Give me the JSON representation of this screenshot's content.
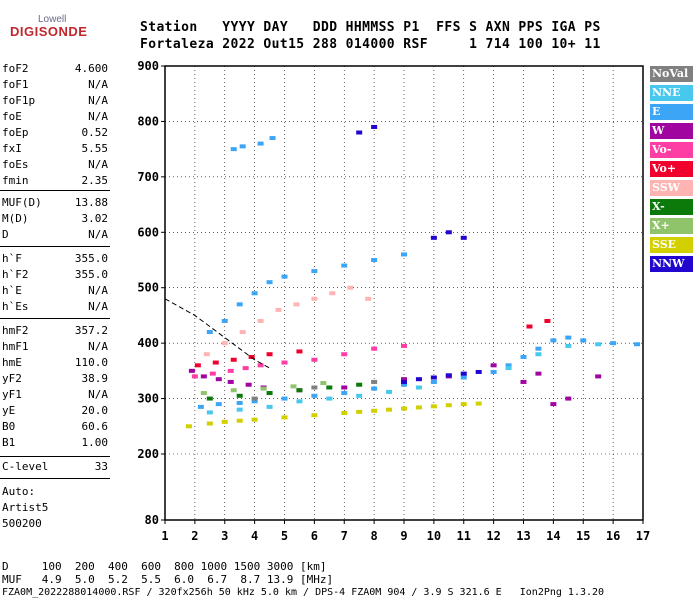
{
  "logo": {
    "top": "Lowell",
    "main": "DIGISONDE"
  },
  "header": {
    "row1": "Station   YYYY DAY   DDD HHMMSS P1  FFS S AXN PPS IGA PS",
    "row2": "Fortaleza 2022 Out15 288 014000 RSF     1 714 100 10+ 11"
  },
  "params": [
    {
      "name": "foF2",
      "value": "4.600"
    },
    {
      "name": "foF1",
      "value": "N/A"
    },
    {
      "name": "foF1p",
      "value": "N/A"
    },
    {
      "name": "foE",
      "value": "N/A"
    },
    {
      "name": "foEp",
      "value": "0.52"
    },
    {
      "name": "fxI",
      "value": "5.55"
    },
    {
      "name": "foEs",
      "value": "N/A"
    },
    {
      "name": "fmin",
      "value": "2.35"
    },
    {
      "name": "MUF(D)",
      "value": "13.88"
    },
    {
      "name": "M(D)",
      "value": "3.02"
    },
    {
      "name": "D",
      "value": "N/A"
    },
    {
      "name": "h`F",
      "value": "355.0"
    },
    {
      "name": "h`F2",
      "value": "355.0"
    },
    {
      "name": "h`E",
      "value": "N/A"
    },
    {
      "name": "h`Es",
      "value": "N/A"
    },
    {
      "name": "hmF2",
      "value": "357.2"
    },
    {
      "name": "hmF1",
      "value": "N/A"
    },
    {
      "name": "hmE",
      "value": "110.0"
    },
    {
      "name": "yF2",
      "value": "38.9"
    },
    {
      "name": "yF1",
      "value": "N/A"
    },
    {
      "name": "yE",
      "value": "20.0"
    },
    {
      "name": "B0",
      "value": "60.6"
    },
    {
      "name": "B1",
      "value": "1.00"
    },
    {
      "name": "C-level",
      "value": "33"
    }
  ],
  "auto": [
    "Auto:",
    "Artist5",
    "500200"
  ],
  "legend": [
    {
      "label": "NoVal",
      "color": "#808080"
    },
    {
      "label": "NNE",
      "color": "#49c8ee"
    },
    {
      "label": "E",
      "color": "#3da5f5"
    },
    {
      "label": "W",
      "color": "#a0069f"
    },
    {
      "label": "Vo-",
      "color": "#ff3ea5"
    },
    {
      "label": "Vo+",
      "color": "#f0002c"
    },
    {
      "label": "SSW",
      "color": "#ffb4b4"
    },
    {
      "label": "X-",
      "color": "#0b7a0b"
    },
    {
      "label": "X+",
      "color": "#8fc46b"
    },
    {
      "label": "SSE",
      "color": "#d2d000"
    },
    {
      "label": "NNW",
      "color": "#2006ce"
    }
  ],
  "bottom": {
    "row_d": "D     100  200  400  600  800 1000 1500 3000 [km]",
    "row_muf": "MUF   4.9  5.0  5.2  5.5  6.0  6.7  8.7 13.9 [MHz]",
    "footer": "FZA0M_2022288014000.RSF / 320fx256h 50 kHz 5.0 km / DPS-4 FZA0M 904 / 3.9 S 321.6 E   Ion2Png 1.3.20"
  },
  "chart_data": {
    "type": "scatter",
    "xlim": [
      1,
      17
    ],
    "ylim": [
      80,
      900
    ],
    "xticks": [
      "1",
      "2",
      "3",
      "4",
      "5",
      "6",
      "7",
      "8",
      "9",
      "10",
      "11",
      "12",
      "13",
      "14",
      "15",
      "16",
      "17"
    ],
    "yticks": [
      "80",
      "200",
      "300",
      "400",
      "500",
      "600",
      "700",
      "800",
      "900"
    ],
    "grid": true,
    "legend_position": "right",
    "series": [
      {
        "name": "SSE",
        "points": [
          [
            1.8,
            250
          ],
          [
            2.5,
            255
          ],
          [
            3.0,
            258
          ],
          [
            3.5,
            260
          ],
          [
            4.0,
            262
          ],
          [
            5.0,
            266
          ],
          [
            6.0,
            270
          ],
          [
            7.0,
            274
          ],
          [
            7.5,
            276
          ],
          [
            8.0,
            278
          ],
          [
            8.5,
            280
          ],
          [
            9.0,
            282
          ],
          [
            9.5,
            284
          ],
          [
            10.0,
            286
          ],
          [
            10.5,
            288
          ],
          [
            11.0,
            290
          ],
          [
            11.5,
            291
          ]
        ]
      },
      {
        "name": "E",
        "points": [
          [
            2.2,
            285
          ],
          [
            2.8,
            290
          ],
          [
            3.5,
            292
          ],
          [
            4.0,
            295
          ],
          [
            5.0,
            300
          ],
          [
            6.0,
            305
          ],
          [
            7.0,
            310
          ],
          [
            8.0,
            318
          ],
          [
            9.0,
            325
          ],
          [
            10.0,
            330
          ],
          [
            11.0,
            338
          ],
          [
            12.0,
            348
          ],
          [
            12.5,
            360
          ],
          [
            13.0,
            375
          ],
          [
            13.5,
            390
          ],
          [
            14.0,
            405
          ],
          [
            14.5,
            410
          ],
          [
            15.0,
            405
          ],
          [
            16.0,
            400
          ],
          [
            16.8,
            398
          ],
          [
            4.5,
            510
          ],
          [
            5.0,
            520
          ],
          [
            6.0,
            530
          ],
          [
            7.0,
            540
          ],
          [
            8.0,
            550
          ],
          [
            9.0,
            560
          ],
          [
            2.5,
            420
          ],
          [
            3.0,
            440
          ],
          [
            3.5,
            470
          ],
          [
            4.0,
            490
          ],
          [
            3.3,
            750
          ],
          [
            3.6,
            755
          ],
          [
            4.2,
            760
          ],
          [
            4.6,
            770
          ]
        ]
      },
      {
        "name": "NNE",
        "points": [
          [
            2.5,
            275
          ],
          [
            3.5,
            280
          ],
          [
            4.5,
            285
          ],
          [
            5.5,
            295
          ],
          [
            6.5,
            300
          ],
          [
            7.5,
            305
          ],
          [
            8.5,
            312
          ],
          [
            9.5,
            320
          ],
          [
            12.5,
            355
          ],
          [
            13.5,
            380
          ],
          [
            14.5,
            395
          ],
          [
            15.5,
            398
          ]
        ]
      },
      {
        "name": "W",
        "points": [
          [
            1.9,
            350
          ],
          [
            2.3,
            340
          ],
          [
            2.8,
            335
          ],
          [
            3.2,
            330
          ],
          [
            3.8,
            325
          ],
          [
            4.3,
            320
          ],
          [
            5.5,
            315
          ],
          [
            7.0,
            320
          ],
          [
            9.0,
            335
          ],
          [
            10.5,
            340
          ],
          [
            12.0,
            360
          ],
          [
            13.0,
            330
          ],
          [
            13.5,
            345
          ],
          [
            14.0,
            290
          ],
          [
            14.5,
            300
          ],
          [
            15.5,
            340
          ]
        ]
      },
      {
        "name": "Vo-",
        "points": [
          [
            2.0,
            340
          ],
          [
            2.6,
            345
          ],
          [
            3.2,
            350
          ],
          [
            3.7,
            355
          ],
          [
            4.2,
            360
          ],
          [
            5.0,
            365
          ],
          [
            6.0,
            370
          ],
          [
            7.0,
            380
          ],
          [
            8.0,
            390
          ],
          [
            9.0,
            395
          ]
        ]
      },
      {
        "name": "Vo+",
        "points": [
          [
            2.1,
            360
          ],
          [
            2.7,
            365
          ],
          [
            3.3,
            370
          ],
          [
            3.9,
            375
          ],
          [
            4.5,
            380
          ],
          [
            5.5,
            385
          ],
          [
            13.2,
            430
          ],
          [
            13.8,
            440
          ]
        ]
      },
      {
        "name": "SSW",
        "points": [
          [
            2.4,
            380
          ],
          [
            3.0,
            400
          ],
          [
            3.6,
            420
          ],
          [
            4.2,
            440
          ],
          [
            4.8,
            460
          ],
          [
            5.4,
            470
          ],
          [
            6.0,
            480
          ],
          [
            6.6,
            490
          ],
          [
            7.2,
            500
          ],
          [
            7.8,
            480
          ]
        ]
      },
      {
        "name": "X-",
        "points": [
          [
            2.5,
            300
          ],
          [
            3.5,
            305
          ],
          [
            4.5,
            310
          ],
          [
            5.5,
            315
          ],
          [
            6.5,
            320
          ],
          [
            7.5,
            325
          ]
        ]
      },
      {
        "name": "X+",
        "points": [
          [
            2.3,
            310
          ],
          [
            3.3,
            315
          ],
          [
            4.3,
            318
          ],
          [
            5.3,
            322
          ],
          [
            6.3,
            328
          ]
        ]
      },
      {
        "name": "NNW",
        "points": [
          [
            9.0,
            330
          ],
          [
            9.5,
            335
          ],
          [
            10.0,
            338
          ],
          [
            10.5,
            342
          ],
          [
            11.0,
            345
          ],
          [
            11.5,
            348
          ],
          [
            10.0,
            590
          ],
          [
            10.5,
            600
          ],
          [
            11.0,
            590
          ],
          [
            7.5,
            780
          ],
          [
            8.0,
            790
          ]
        ]
      },
      {
        "name": "NoVal",
        "points": [
          [
            4.0,
            300
          ],
          [
            6.0,
            320
          ],
          [
            8.0,
            330
          ]
        ]
      }
    ],
    "annotations": [
      {
        "label": "dashed trace",
        "points": [
          [
            1.0,
            480
          ],
          [
            2.0,
            450
          ],
          [
            3.0,
            410
          ],
          [
            3.5,
            390
          ],
          [
            4.0,
            370
          ],
          [
            4.5,
            355
          ]
        ]
      }
    ]
  }
}
